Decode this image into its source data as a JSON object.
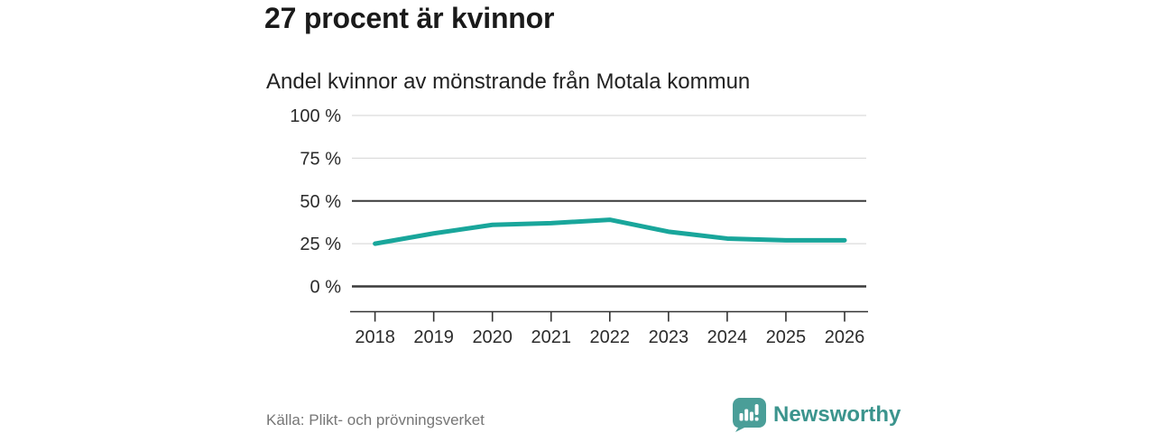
{
  "header": {
    "title": "27 procent är kvinnor",
    "subtitle": "Andel kvinnor av mönstrande från Motala kommun"
  },
  "chart_data": {
    "type": "line",
    "title": "27 procent är kvinnor",
    "subtitle": "Andel kvinnor av mönstrande från Motala kommun",
    "x": [
      "2018",
      "2019",
      "2020",
      "2021",
      "2022",
      "2023",
      "2024",
      "2025",
      "2026"
    ],
    "series": [
      {
        "name": "Andel kvinnor av mönstrande",
        "values": [
          25,
          31,
          36,
          37,
          39,
          32,
          28,
          27,
          27
        ]
      }
    ],
    "unit": "%",
    "ylim": [
      0,
      100
    ],
    "yticks": [
      {
        "label": "100 %",
        "value": 100,
        "emphasis": false
      },
      {
        "label": "75 %",
        "value": 75,
        "emphasis": false
      },
      {
        "label": "50 %",
        "value": 50,
        "emphasis": true
      },
      {
        "label": "25 %",
        "value": 25,
        "emphasis": false
      },
      {
        "label": "0 %",
        "value": 0,
        "emphasis": true
      }
    ],
    "grid": true,
    "legend": false,
    "line_color": "#19a69b"
  },
  "footer": {
    "source": "Källa: Plikt- och prövningsverket",
    "brand": "Newsworthy"
  },
  "colors": {
    "accent_line": "#19a69b",
    "brand_teal": "#3b948d",
    "logo_teal": "#4a9e98",
    "title_text": "#1a1a1a",
    "axis_text": "#2b2b2b",
    "grid_light": "#dcdcdc",
    "grid_dark": "#3a3a3a",
    "source_text": "#767676"
  }
}
